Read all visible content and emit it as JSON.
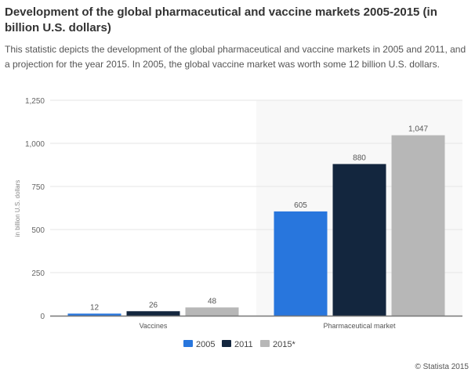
{
  "header": {
    "title": "Development of the global pharmaceutical and vaccine markets 2005-2015 (in billion U.S. dollars)",
    "description": "This statistic depicts the development of the global pharmaceutical and vaccine markets in 2005 and 2011, and a projection for the year 2015. In 2005, the global vaccine market was worth some 12 billion U.S. dollars."
  },
  "chart_data": {
    "type": "bar",
    "categories": [
      "Vaccines",
      "Pharmaceutical market"
    ],
    "series": [
      {
        "name": "2005",
        "values": [
          12,
          605
        ],
        "labels": [
          "12",
          "605"
        ],
        "color": "#2876dd"
      },
      {
        "name": "2011",
        "values": [
          26,
          880
        ],
        "labels": [
          "26",
          "880"
        ],
        "color": "#13263e"
      },
      {
        "name": "2015*",
        "values": [
          48,
          1047
        ],
        "labels": [
          "48",
          "1,047"
        ],
        "color": "#b7b7b7"
      }
    ],
    "ylabel": "in billion U.S. dollars",
    "ylim": [
      0,
      1250
    ],
    "yticks": [
      0,
      250,
      500,
      750,
      1000,
      1250
    ],
    "ytick_labels": [
      "0",
      "250",
      "500",
      "750",
      "1,000",
      "1,250"
    ],
    "grid": true,
    "legend": "bottom-center"
  },
  "footer": {
    "copyright": "© Statista 2015"
  }
}
